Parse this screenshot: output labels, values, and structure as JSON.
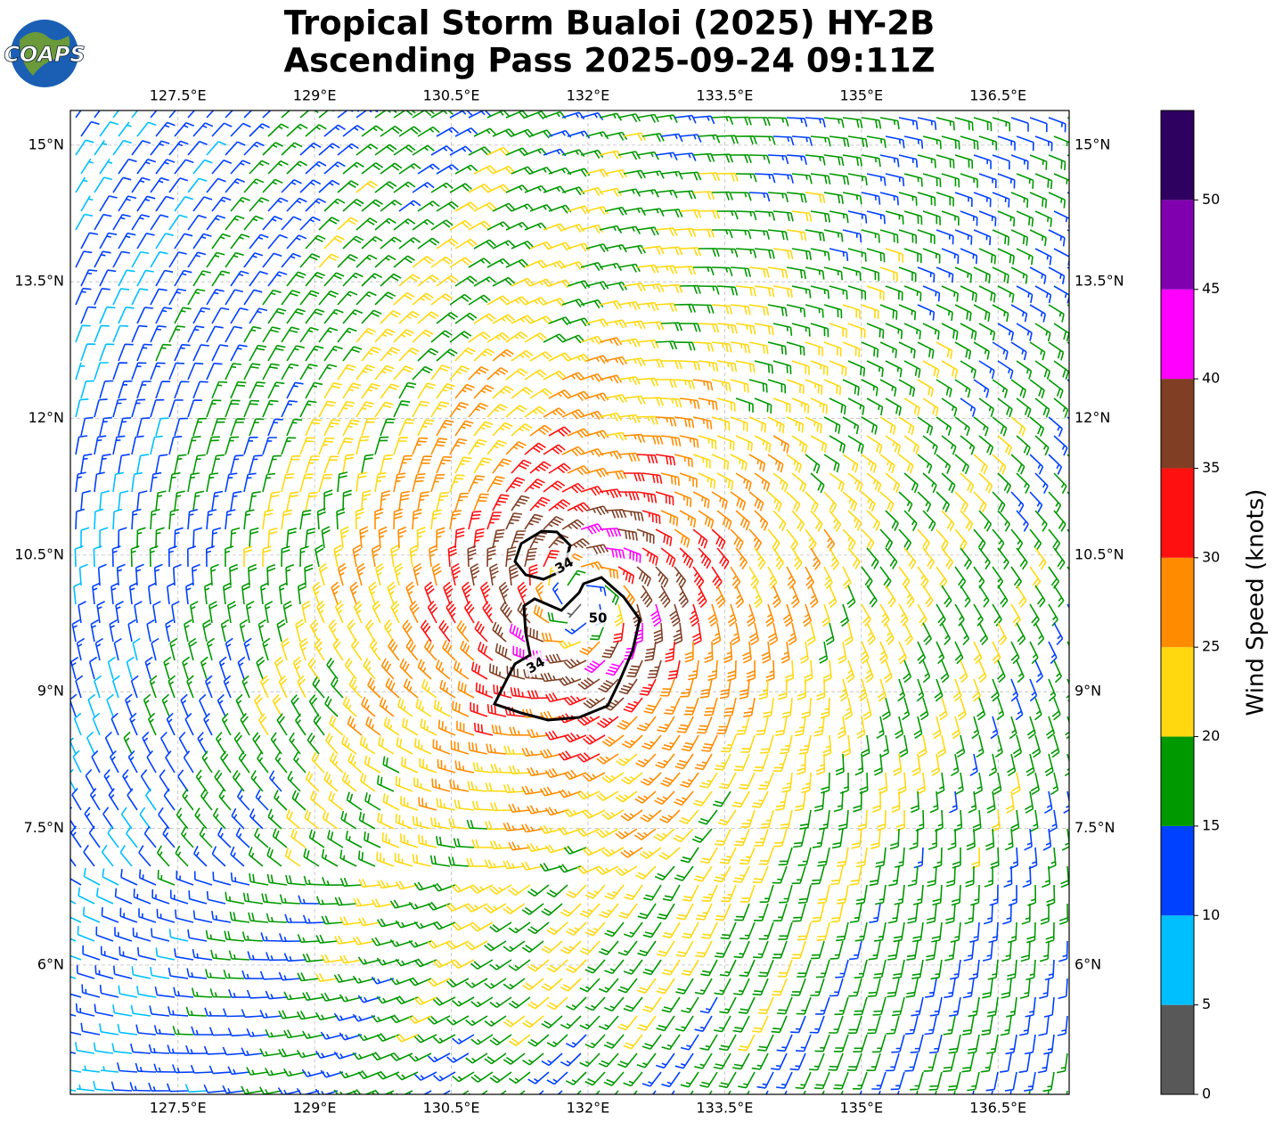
{
  "chart_data": {
    "type": "wind-barb-map",
    "logo": "COAPS",
    "title": "Tropical Storm Bualoi (2025) HY-2B",
    "subtitle": "Ascending Pass 2025-09-24 09:11Z",
    "xlim": [
      126.32,
      137.28
    ],
    "ylim": [
      4.58,
      15.38
    ],
    "xticks": [
      {
        "value": 127.5,
        "label": "127.5°E"
      },
      {
        "value": 129,
        "label": "129°E"
      },
      {
        "value": 130.5,
        "label": "130.5°E"
      },
      {
        "value": 132,
        "label": "132°E"
      },
      {
        "value": 133.5,
        "label": "133.5°E"
      },
      {
        "value": 135,
        "label": "135°E"
      },
      {
        "value": 136.5,
        "label": "136.5°E"
      }
    ],
    "yticks": [
      {
        "value": 15,
        "label": "15°N"
      },
      {
        "value": 13.5,
        "label": "13.5°N"
      },
      {
        "value": 12,
        "label": "12°N"
      },
      {
        "value": 10.5,
        "label": "10.5°N"
      },
      {
        "value": 9,
        "label": "9°N"
      },
      {
        "value": 7.5,
        "label": "7.5°N"
      },
      {
        "value": 6,
        "label": "6°N"
      }
    ],
    "grid": true,
    "colorbar": {
      "label": "Wind Speed (knots)",
      "lim": [
        0,
        55
      ],
      "ticks": [
        0,
        5,
        10,
        15,
        20,
        25,
        30,
        35,
        40,
        45,
        50
      ],
      "bounds": [
        0,
        5,
        10,
        15,
        20,
        25,
        30,
        35,
        40,
        45,
        50,
        55
      ],
      "colors": [
        "#585858",
        "#00bfff",
        "#0040ff",
        "#009900",
        "#ffd810",
        "#ff8c00",
        "#ff1010",
        "#803f25",
        "#ff00ff",
        "#8000b0",
        "#2e0060"
      ]
    },
    "contour_labels": [
      "34",
      "50",
      "34"
    ]
  }
}
